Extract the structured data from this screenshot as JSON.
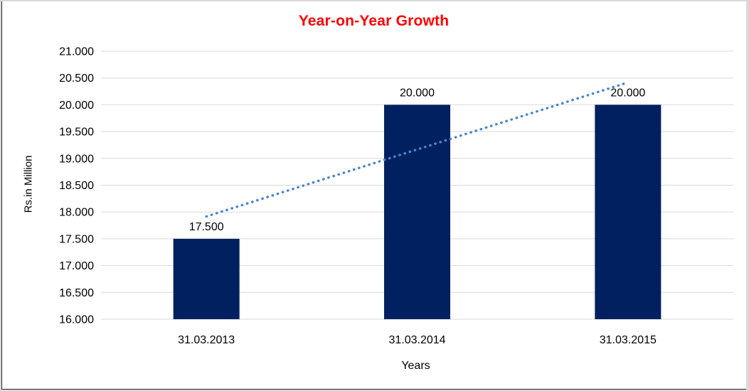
{
  "chart_data": {
    "type": "bar",
    "title": "Year-on-Year Growth",
    "categories": [
      "31.03.2013",
      "31.03.2014",
      "31.03.2015"
    ],
    "values": [
      17.5,
      20.0,
      20.0
    ],
    "data_labels": [
      "17.500",
      "20.000",
      "20.000"
    ],
    "xlabel": "Years",
    "ylabel": "Rs.in Million",
    "ylim": [
      16,
      21
    ],
    "ytick_step": 0.5,
    "ytick_labels": [
      "16.000",
      "16.500",
      "17.000",
      "17.500",
      "18.000",
      "18.500",
      "19.000",
      "19.500",
      "20.000",
      "20.500",
      "21.000"
    ],
    "grid": true,
    "legend": "none",
    "trendline": {
      "type": "linear",
      "style": "dotted"
    }
  },
  "colors": {
    "title": "#ff0000",
    "bar": "#002060",
    "trendline": "#4a86c8",
    "gridline": "#d9d9d9",
    "axis_text": "#000000"
  }
}
